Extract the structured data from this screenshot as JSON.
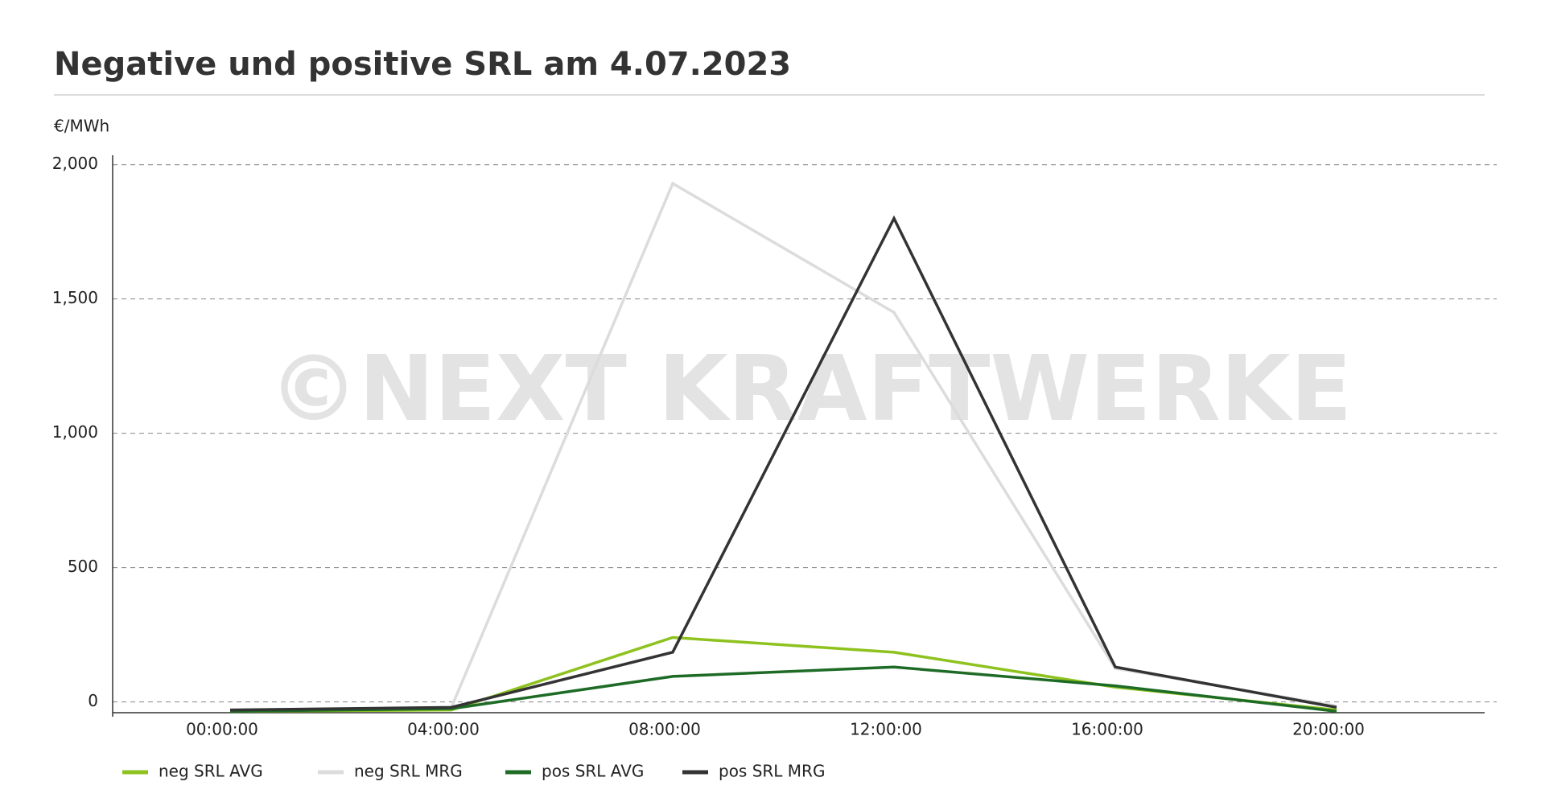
{
  "chart_data": {
    "type": "line",
    "title": "Negative und positive SRL am 4.07.2023",
    "y_label": "€/MWh",
    "watermark": "©NEXT KRAFTWERKE",
    "categories": [
      "00:00:00",
      "04:00:00",
      "08:00:00",
      "12:00:00",
      "16:00:00",
      "20:00:00"
    ],
    "series": [
      {
        "name": "neg SRL AVG",
        "color": "#8dc21f",
        "values": [
          -35,
          -30,
          240,
          185,
          55,
          -30
        ]
      },
      {
        "name": "neg SRL MRG",
        "color": "#dcdcdc",
        "values": [
          null,
          -20,
          1930,
          1450,
          125,
          -15
        ]
      },
      {
        "name": "pos SRL AVG",
        "color": "#1e6b26",
        "values": [
          -35,
          -25,
          95,
          130,
          60,
          -35
        ]
      },
      {
        "name": "pos SRL MRG",
        "color": "#333333",
        "values": [
          -30,
          -20,
          185,
          1800,
          130,
          -20
        ]
      }
    ],
    "ylim": [
      -40,
      2035
    ],
    "yticks": [
      0,
      500,
      {
        "value": 1000,
        "label": "1,000"
      },
      {
        "value": 1500,
        "label": "1,500"
      },
      {
        "value": 2000,
        "label": "2,000"
      }
    ],
    "grid": true
  }
}
